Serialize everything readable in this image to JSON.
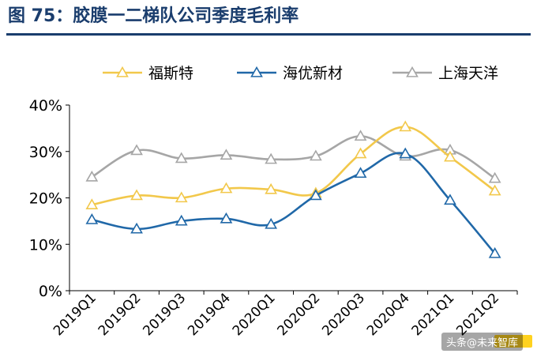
{
  "figure_title": "图 75：胶膜一二梯队公司季度毛利率",
  "watermark": "头条@未来智库",
  "chart_data": {
    "type": "line",
    "title": "图 75：胶膜一二梯队公司季度毛利率",
    "categories": [
      "2019Q1",
      "2019Q2",
      "2019Q3",
      "2019Q4",
      "2020Q1",
      "2020Q2",
      "2020Q3",
      "2020Q4",
      "2021Q1",
      "2021Q2"
    ],
    "series": [
      {
        "name": "福斯特",
        "color": "#f2c84b",
        "values": [
          18.5,
          20.5,
          20.0,
          22.0,
          21.8,
          21.0,
          29.5,
          35.3,
          28.8,
          21.5
        ]
      },
      {
        "name": "海优新材",
        "color": "#2068a8",
        "values": [
          15.3,
          13.3,
          15.0,
          15.5,
          14.3,
          20.5,
          25.3,
          29.5,
          19.5,
          8.0
        ]
      },
      {
        "name": "上海天洋",
        "color": "#a6a6a6",
        "values": [
          24.5,
          30.2,
          28.5,
          29.2,
          28.3,
          29.0,
          33.3,
          29.0,
          30.3,
          24.2
        ]
      }
    ],
    "ylim": [
      0,
      40
    ],
    "yticks": [
      0,
      10,
      20,
      30,
      40
    ],
    "ytick_labels": [
      "0%",
      "10%",
      "20%",
      "30%",
      "40%"
    ],
    "legend_position": "top",
    "grid": false,
    "smooth": true,
    "marker": "open-triangle"
  }
}
